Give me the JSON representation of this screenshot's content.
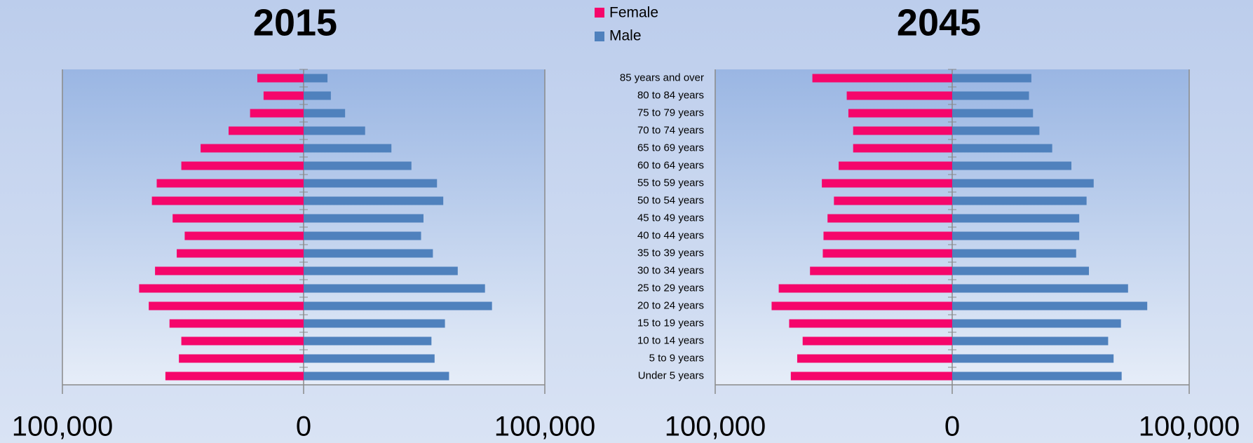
{
  "chart_data": [
    {
      "type": "pyramid",
      "title": "2015",
      "series": [
        {
          "name": "Female",
          "color": "#f5066b",
          "values": [
            -57300,
            -51700,
            -50700,
            -55600,
            -64200,
            -68200,
            -61600,
            -52600,
            -49300,
            -54300,
            -62900,
            -60900,
            -50700,
            -42700,
            -31100,
            -22200,
            -16600,
            -19200
          ]
        },
        {
          "name": "Male",
          "color": "#4f81bd",
          "values": [
            60300,
            54300,
            53000,
            58600,
            78100,
            75200,
            63900,
            53600,
            48700,
            49700,
            57900,
            55300,
            44700,
            36400,
            25500,
            17200,
            11300,
            9900
          ]
        }
      ],
      "xlim": [
        -100000,
        100000
      ],
      "xticks": [
        {
          "value": -100000,
          "label": "100,000"
        },
        0,
        {
          "value": 100000,
          "label": "100,000"
        }
      ]
    },
    {
      "type": "pyramid",
      "title": "2045",
      "categories": [
        "Under 5 years",
        "5 to 9 years",
        "10 to 14 years",
        "15 to 19 years",
        "20 to 24 years",
        "25 to 29 years",
        "30 to 34 years",
        "35 to 39 years",
        "40 to 44 years",
        "45 to 49 years",
        "50 to 54 years",
        "55 to 59 years",
        "60 to 64 years",
        "65 to 69 years",
        "70 to 74 years",
        "75 to 79 years",
        "80 to 84 years",
        "85 years and over"
      ],
      "series": [
        {
          "color": "#f5066b",
          "values": [
            -68100,
            -65400,
            -63100,
            -68800,
            -76200,
            -73200,
            -60000,
            -54600,
            -54300,
            -52600,
            -49900,
            -55000,
            -47900,
            -41800,
            -41800,
            -43800,
            -44500,
            -59000
          ]
        },
        {
          "color": "#4f81bd",
          "values": [
            71500,
            68100,
            65800,
            71200,
            82300,
            74200,
            57700,
            52300,
            53600,
            53600,
            56700,
            59700,
            50300,
            42200,
            36800,
            34100,
            32400,
            33400
          ]
        }
      ],
      "xlim": [
        -100000,
        100000
      ],
      "xticks": [
        {
          "value": -100000,
          "label": "100,000"
        },
        0,
        {
          "value": 100000,
          "label": "100,000"
        }
      ]
    }
  ]
}
